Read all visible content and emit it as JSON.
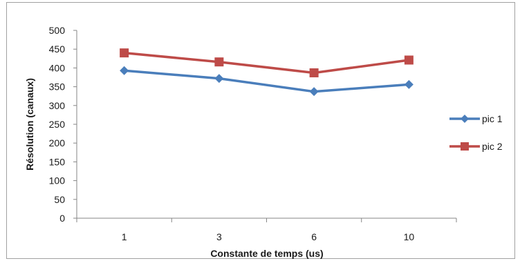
{
  "chart_data": {
    "type": "line",
    "title": "",
    "xlabel": "Constante de temps (us)",
    "ylabel": "Résolution (canaux)",
    "categories": [
      "1",
      "3",
      "6",
      "10"
    ],
    "ylim": [
      0,
      500
    ],
    "y_ticks": [
      "0",
      "50",
      "100",
      "150",
      "200",
      "250",
      "300",
      "350",
      "400",
      "450",
      "500"
    ],
    "grid": false,
    "legend_position": "right",
    "series": [
      {
        "name": "pic 1",
        "values": [
          393,
          372,
          337,
          356
        ],
        "color": "#4a7ebb",
        "marker": "diamond"
      },
      {
        "name": "pic 2",
        "values": [
          440,
          416,
          387,
          421
        ],
        "color": "#be4b48",
        "marker": "square"
      }
    ]
  }
}
